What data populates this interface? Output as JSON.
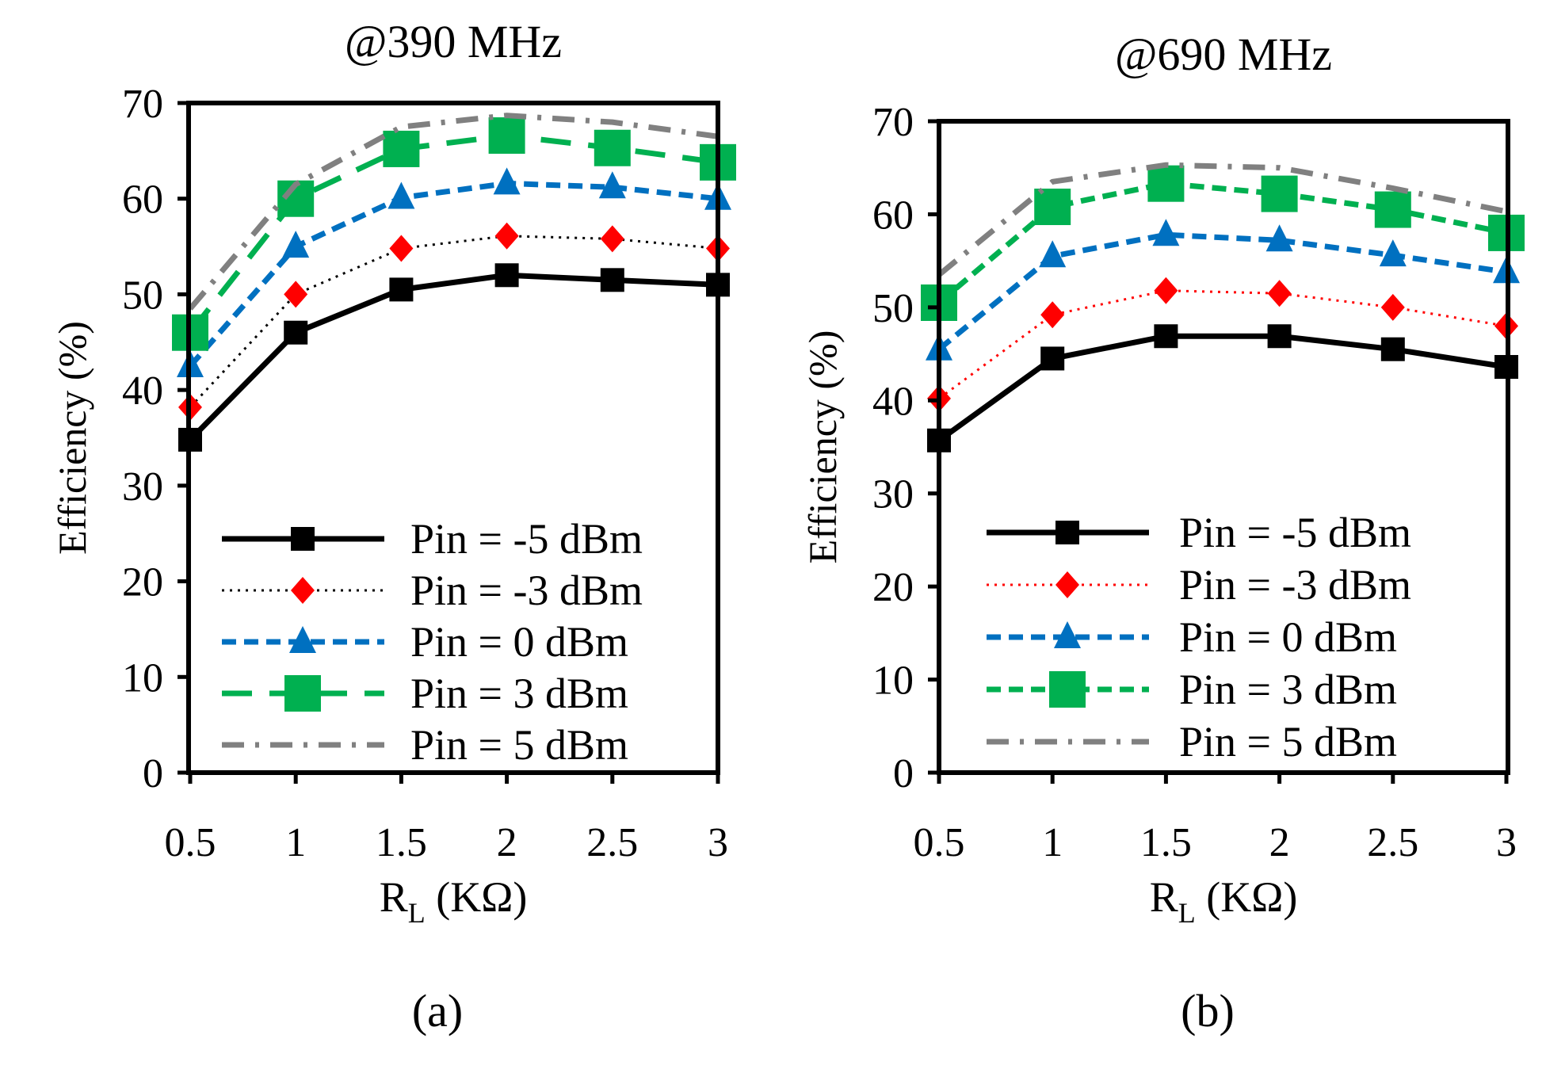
{
  "chart_data": [
    {
      "type": "line",
      "title": "@390 MHz",
      "xlabel_main": "R",
      "xlabel_sub": "L",
      "xlabel_unit": " (KΩ)",
      "ylabel": "Efficiency (%)",
      "caption": "(a)",
      "x": [
        0.5,
        1,
        1.5,
        2,
        2.5,
        3
      ],
      "x_ticks": [
        "0.5",
        "1",
        "1.5",
        "2",
        "2.5",
        "3"
      ],
      "y_ticks": [
        "0",
        "10",
        "20",
        "30",
        "40",
        "50",
        "60",
        "70"
      ],
      "ylim": [
        0,
        70
      ],
      "legend_position": "bottom-right",
      "series": [
        {
          "name": "Pin = -5 dBm",
          "color": "#000000",
          "marker": "square",
          "line": "solid",
          "values": [
            34.8,
            46.0,
            50.5,
            52.0,
            51.5,
            51.0
          ]
        },
        {
          "name": "Pin = -3 dBm",
          "color": "#000000",
          "marker_color": "#ff0000",
          "marker": "diamond",
          "line": "dotted",
          "values": [
            38.2,
            50.0,
            54.8,
            56.1,
            55.8,
            54.8
          ]
        },
        {
          "name": "Pin = 0 dBm",
          "color": "#0070c0",
          "marker": "triangle",
          "line": "dashed",
          "values": [
            42.5,
            55.0,
            60.1,
            61.6,
            61.2,
            60.0
          ]
        },
        {
          "name": "Pin = 3 dBm",
          "color": "#00b050",
          "marker": "square-large",
          "line": "longdash",
          "values": [
            46.0,
            60.0,
            65.2,
            66.6,
            65.3,
            63.8
          ]
        },
        {
          "name": "Pin = 5 dBm",
          "color": "#808080",
          "marker": "none",
          "line": "dashdot",
          "values": [
            48.5,
            61.5,
            67.5,
            68.7,
            68.0,
            66.5
          ]
        }
      ]
    },
    {
      "type": "line",
      "title": "@690 MHz",
      "xlabel_main": "R",
      "xlabel_sub": "L",
      "xlabel_unit": " (KΩ)",
      "ylabel": "Efficiency (%)",
      "caption": "(b)",
      "x": [
        0.5,
        1,
        1.5,
        2,
        2.5,
        3
      ],
      "x_ticks": [
        "0.5",
        "1",
        "1.5",
        "2",
        "2.5",
        "3"
      ],
      "y_ticks": [
        "0",
        "10",
        "20",
        "30",
        "40",
        "50",
        "60",
        "70"
      ],
      "ylim": [
        0,
        70
      ],
      "legend_position": "bottom-right",
      "series": [
        {
          "name": "Pin = -5 dBm",
          "color": "#000000",
          "marker": "square",
          "line": "solid",
          "values": [
            35.7,
            44.5,
            46.9,
            46.9,
            45.5,
            43.6
          ]
        },
        {
          "name": "Pin = -3 dBm",
          "color": "#ff0000",
          "marker_color": "#ff0000",
          "marker": "diamond",
          "line": "dotted",
          "values": [
            40.2,
            49.2,
            51.8,
            51.5,
            50.0,
            48.0
          ]
        },
        {
          "name": "Pin = 0 dBm",
          "color": "#0070c0",
          "marker": "triangle",
          "line": "dashed",
          "values": [
            45.5,
            55.5,
            57.8,
            57.2,
            55.6,
            53.8
          ]
        },
        {
          "name": "Pin = 3 dBm",
          "color": "#00b050",
          "marker": "square-large",
          "line": "dashed",
          "values": [
            50.5,
            60.8,
            63.3,
            62.2,
            60.5,
            58.0
          ]
        },
        {
          "name": "Pin = 5 dBm",
          "color": "#808080",
          "marker": "none",
          "line": "dashdot",
          "values": [
            53.5,
            63.5,
            65.3,
            65.0,
            62.8,
            60.3
          ]
        }
      ]
    }
  ]
}
